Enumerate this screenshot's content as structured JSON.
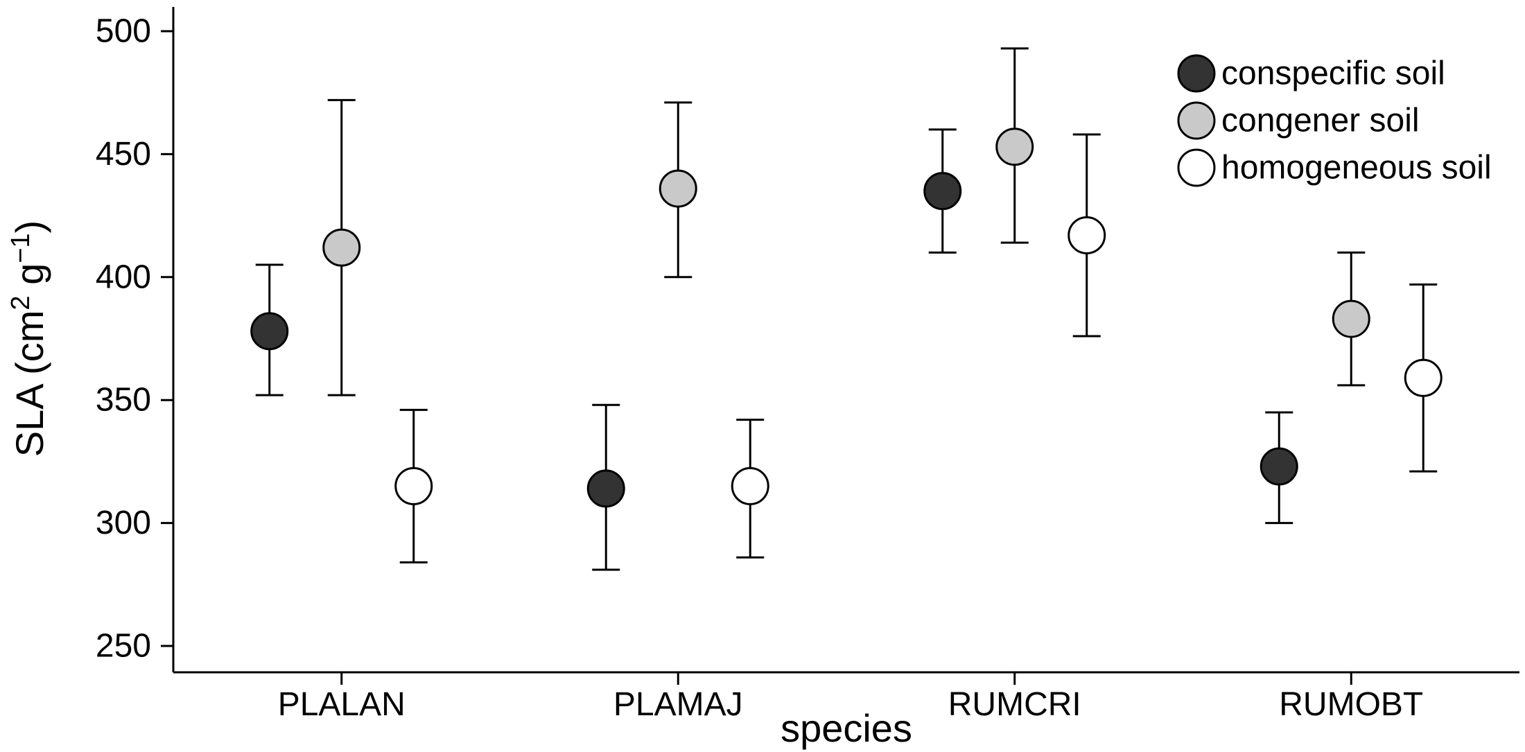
{
  "chart_data": {
    "type": "scatter",
    "title": "",
    "xlabel": "species",
    "ylabel": "SLA (cm² g⁻¹)",
    "ylabel_parts": [
      {
        "t": "SLA (cm"
      },
      {
        "t": "2",
        "sup": true
      },
      {
        "t": " g"
      },
      {
        "t": "−1",
        "sup": true
      },
      {
        "t": ")"
      }
    ],
    "ylim": [
      250,
      500
    ],
    "yticks": [
      250,
      300,
      350,
      400,
      450,
      500
    ],
    "grid": false,
    "legend_position": "top-right",
    "categories": [
      "PLALAN",
      "PLAMAJ",
      "RUMCRI",
      "RUMOBT"
    ],
    "legend": [
      {
        "label": "conspecific soil",
        "fill": "#333333"
      },
      {
        "label": "congener soil",
        "fill": "#c9c9c9"
      },
      {
        "label": "homogeneous soil",
        "fill": "#ffffff"
      }
    ],
    "series": [
      {
        "name": "conspecific soil",
        "fill": "#333333",
        "means": [
          378,
          314,
          435,
          323
        ],
        "lower": [
          352,
          281,
          410,
          300
        ],
        "upper": [
          405,
          348,
          460,
          345
        ]
      },
      {
        "name": "congener soil",
        "fill": "#c9c9c9",
        "means": [
          412,
          436,
          453,
          383
        ],
        "lower": [
          352,
          400,
          414,
          356
        ],
        "upper": [
          472,
          471,
          493,
          410
        ]
      },
      {
        "name": "homogeneous soil",
        "fill": "#ffffff",
        "means": [
          315,
          315,
          417,
          359
        ],
        "lower": [
          284,
          286,
          376,
          321
        ],
        "upper": [
          346,
          342,
          458,
          397
        ]
      }
    ],
    "point_outline": "#000000",
    "errorbar_color": "#000000"
  }
}
